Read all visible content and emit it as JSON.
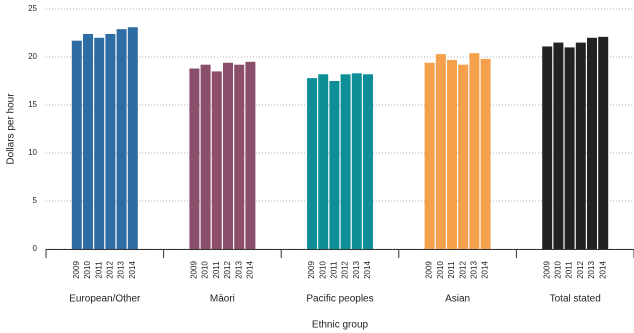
{
  "chart_data": {
    "type": "bar",
    "x_label": "Ethnic group",
    "y_label": "Dollars per hour",
    "subcategories": [
      "2009",
      "2010",
      "2011",
      "2012",
      "2013",
      "2014"
    ],
    "groups": [
      {
        "name": "European/Other",
        "color": "#2e6da4",
        "values": [
          21.7,
          22.4,
          22.0,
          22.4,
          22.9,
          23.1
        ]
      },
      {
        "name": "Māori",
        "color": "#8b4f6b",
        "values": [
          18.8,
          19.2,
          18.5,
          19.4,
          19.2,
          19.5
        ]
      },
      {
        "name": "Pacific peoples",
        "color": "#0e8f97",
        "values": [
          17.8,
          18.2,
          17.5,
          18.2,
          18.3,
          18.2
        ]
      },
      {
        "name": "Asian",
        "color": "#f5a04a",
        "values": [
          19.4,
          20.3,
          19.7,
          19.2,
          20.4,
          19.8
        ]
      },
      {
        "name": "Total stated",
        "color": "#222222",
        "values": [
          21.1,
          21.5,
          21.0,
          21.5,
          22.0,
          22.1
        ]
      }
    ],
    "ylim": [
      0,
      25
    ],
    "yticks": [
      0,
      5,
      10,
      15,
      20,
      25
    ],
    "grid": true
  }
}
